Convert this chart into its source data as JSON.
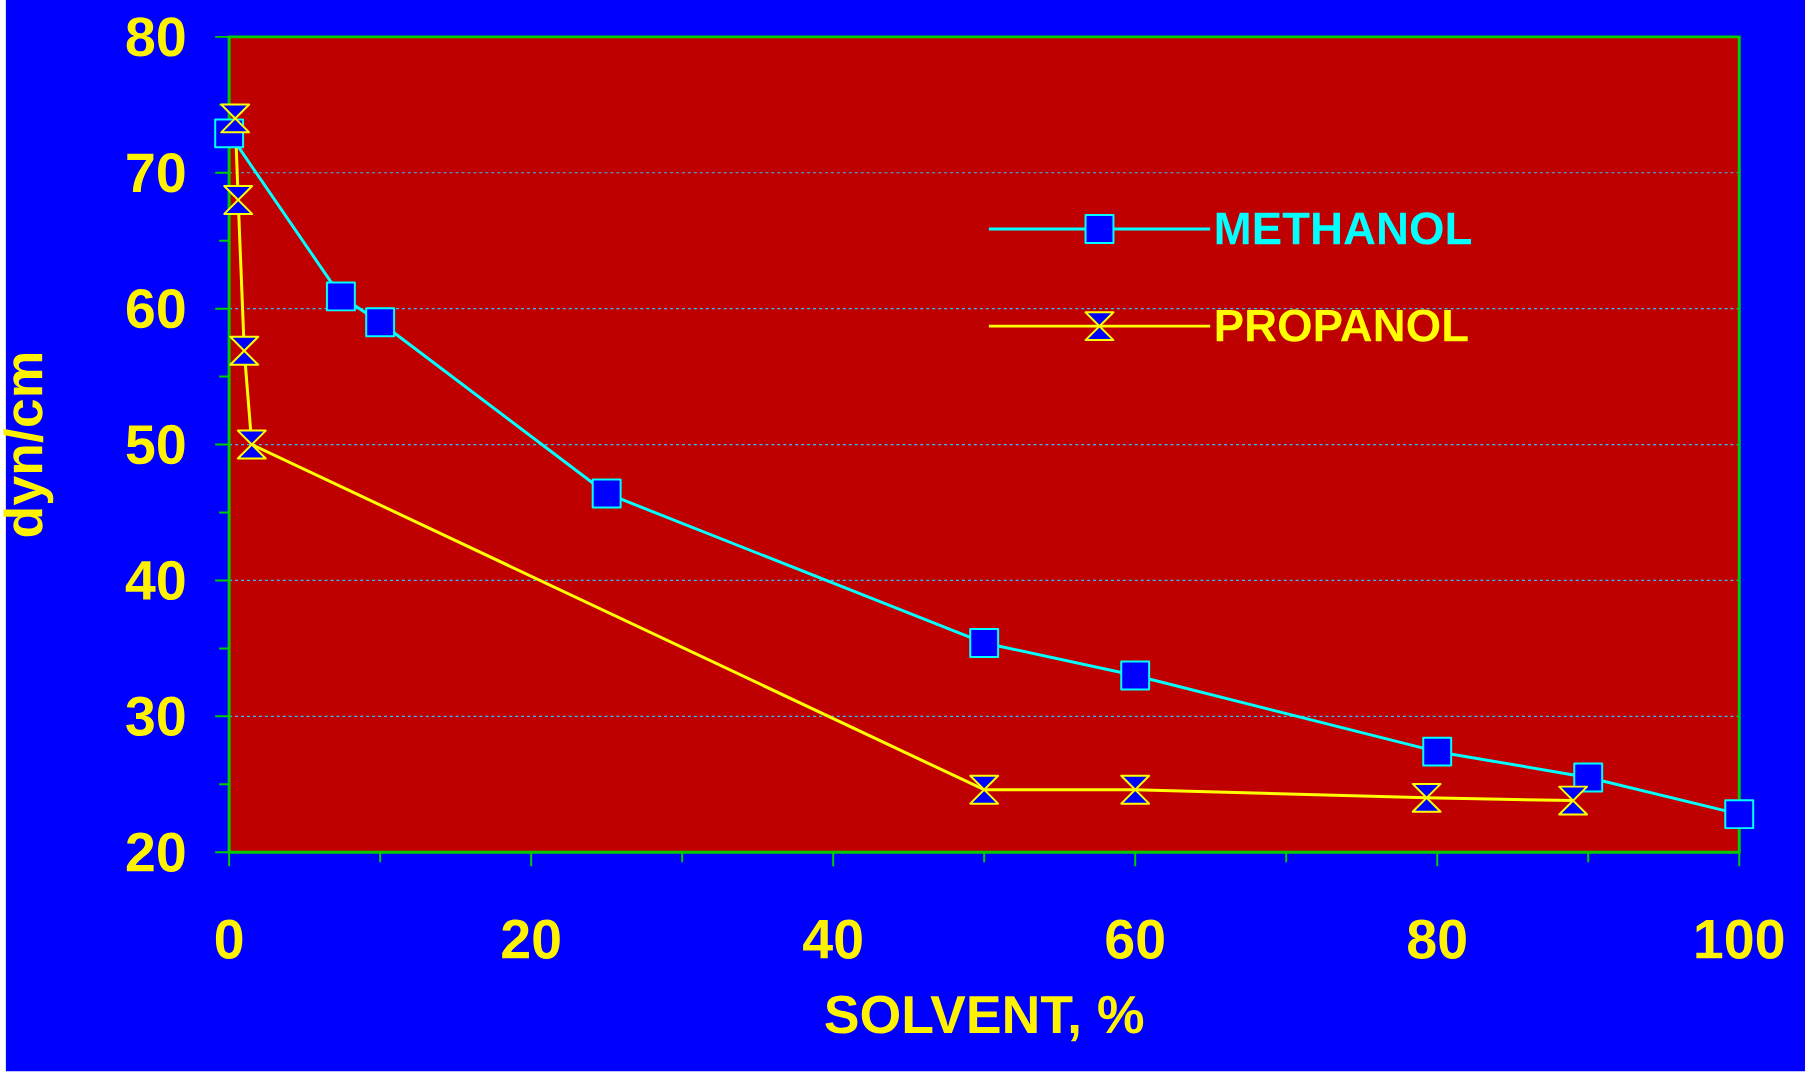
{
  "chart_data": {
    "type": "line",
    "xlabel": "SOLVENT, %",
    "ylabel": "dyn/cm",
    "xlim": [
      0,
      100
    ],
    "xticks": [
      0,
      20,
      40,
      60,
      80,
      100
    ],
    "ylim": [
      20,
      80
    ],
    "yticks": [
      20,
      30,
      40,
      50,
      60,
      70,
      80
    ],
    "grid": "y",
    "legend": "top right",
    "series": [
      {
        "name": "METHANOL",
        "color": "#00ffff",
        "marker": "square",
        "x": [
          0,
          7.4,
          10,
          25,
          50,
          60,
          80,
          90,
          100
        ],
        "values": [
          72.9,
          60.9,
          59,
          46.4,
          35.4,
          33,
          27.4,
          25.5,
          22.8
        ]
      },
      {
        "name": "PROPANOL",
        "color": "#ffff00",
        "marker": "diamond",
        "x": [
          0.4,
          0.6,
          1,
          1.5,
          50,
          60,
          79.3,
          89
        ],
        "values": [
          74,
          68,
          56.9,
          50,
          24.6,
          24.6,
          24,
          23.8
        ]
      }
    ]
  }
}
